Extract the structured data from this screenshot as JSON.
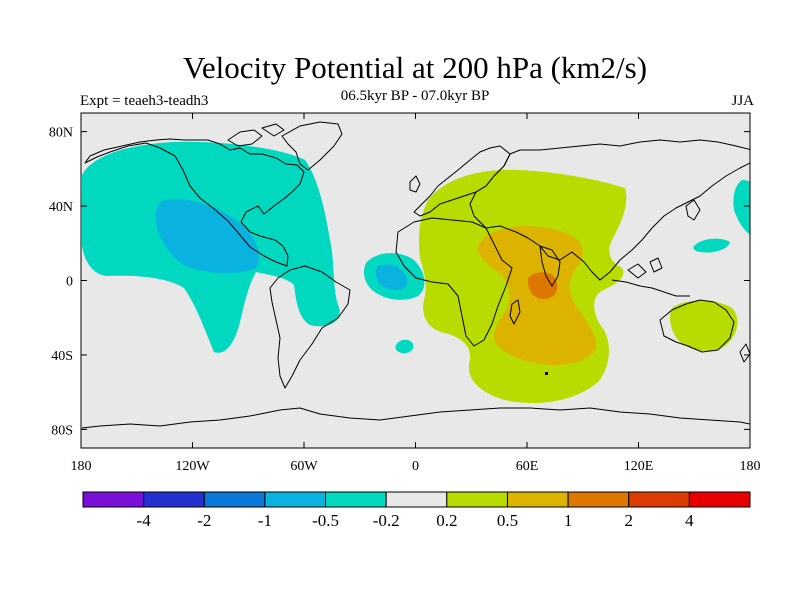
{
  "header": {
    "title": "Velocity Potential at 200 hPa (km2/s)",
    "subtitle": "06.5kyr BP - 07.0kyr BP",
    "left_label": "Expt = teaeh3-teadh3",
    "right_label": "JJA"
  },
  "map": {
    "lon_range": [
      -180,
      180
    ],
    "lat_range": [
      -90,
      90
    ],
    "lat_ticks": [
      {
        "value": 80,
        "label": "80N"
      },
      {
        "value": 40,
        "label": "40N"
      },
      {
        "value": 0,
        "label": "0"
      },
      {
        "value": -40,
        "label": "40S"
      },
      {
        "value": -80,
        "label": "80S"
      }
    ],
    "lon_ticks": [
      {
        "value": -180,
        "label": "180"
      },
      {
        "value": -120,
        "label": "120W"
      },
      {
        "value": -60,
        "label": "60W"
      },
      {
        "value": 0,
        "label": "0"
      },
      {
        "value": 60,
        "label": "60E"
      },
      {
        "value": 120,
        "label": "120E"
      },
      {
        "value": 180,
        "label": "180"
      }
    ],
    "background_color": "#e8e8e8"
  },
  "colorbar": {
    "colors": [
      "#7a10d8",
      "#2430d0",
      "#0a78d8",
      "#0ab2e0",
      "#00d8c0",
      "#e8e8e8",
      "#b8dc00",
      "#dcb400",
      "#dc7800",
      "#dc3c00",
      "#e80000"
    ],
    "labels": [
      "-4",
      "-2",
      "-1",
      "-0.5",
      "-0.2",
      "0.2",
      "0.5",
      "1",
      "2",
      "4"
    ]
  },
  "chart_data": {
    "type": "heatmap",
    "variable": "Velocity Potential at 200 hPa (km2/s)",
    "period": "06.5kyr BP - 07.0kyr BP",
    "season": "JJA",
    "levels": [
      -4,
      -2,
      -1,
      -0.5,
      -0.2,
      0.2,
      0.5,
      1,
      2,
      4
    ],
    "regions": [
      {
        "level": "-0.5 to -0.2",
        "color": "#00d8c0",
        "fill": "fill_neg_light"
      },
      {
        "level": "-1 to -0.5",
        "color": "#0ab2e0",
        "fill": "fill_neg_mid"
      },
      {
        "level": "0.2 to 0.5",
        "color": "#b8dc00",
        "fill": "fill_pos_light"
      },
      {
        "level": "0.5 to 1",
        "color": "#dcb400",
        "fill": "fill_pos_mid"
      },
      {
        "level": "1 to 2",
        "color": "#dc7800",
        "fill": "fill_pos_high"
      }
    ]
  }
}
